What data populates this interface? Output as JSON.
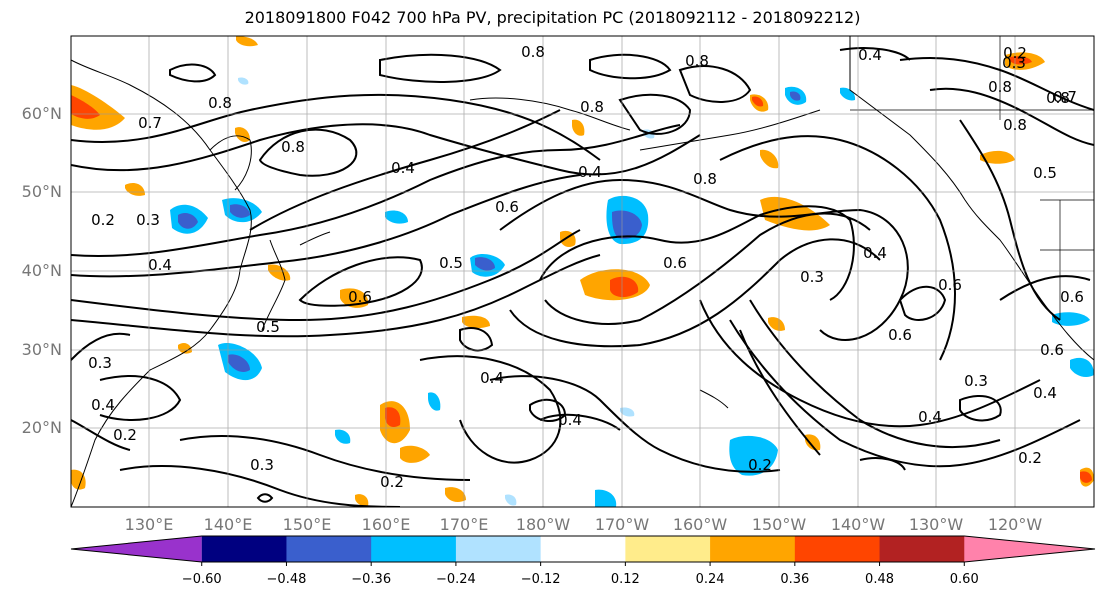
{
  "title": "2018091800 F042 700 hPa PV, precipitation PC (2018092112 - 2018092212)",
  "lat_labels": [
    "60°N",
    "50°N",
    "40°N",
    "30°N",
    "20°N"
  ],
  "lon_labels": [
    "130°E",
    "140°E",
    "150°E",
    "160°E",
    "170°E",
    "180°W",
    "170°W",
    "160°W",
    "150°W",
    "140°W",
    "130°W",
    "120°W"
  ],
  "contour_labels": [
    "0.8",
    "0.8",
    "0.8",
    "0.8",
    "0.8",
    "0.8",
    "0.4",
    "0.2",
    "0.7",
    "0.8",
    "0.4",
    "0.4",
    "0.6",
    "0.8",
    "0.5",
    "0.2",
    "0.3",
    "0.4",
    "0.5",
    "0.5",
    "0.6",
    "0.6",
    "0.3",
    "0.4",
    "0.6",
    "0.6",
    "0.4",
    "0.4",
    "0.3",
    "0.4",
    "0.2",
    "0.3",
    "0.2",
    "0.4",
    "0.6",
    "0.3",
    "0.4",
    "0.2",
    "0.2",
    "0.6",
    "0.8",
    "0.7",
    "0.3"
  ],
  "colorbar": {
    "ticks": [
      "−0.60",
      "−0.48",
      "−0.36",
      "−0.24",
      "−0.12",
      "0.12",
      "0.24",
      "0.36",
      "0.48",
      "0.60"
    ],
    "colors": [
      "#9932cc",
      "#000080",
      "#3a5fcd",
      "#00bfff",
      "#b0e2ff",
      "#ffffff",
      "#ffec8b",
      "#ffa500",
      "#ff4500",
      "#b22222",
      "#ff82ab"
    ]
  }
}
